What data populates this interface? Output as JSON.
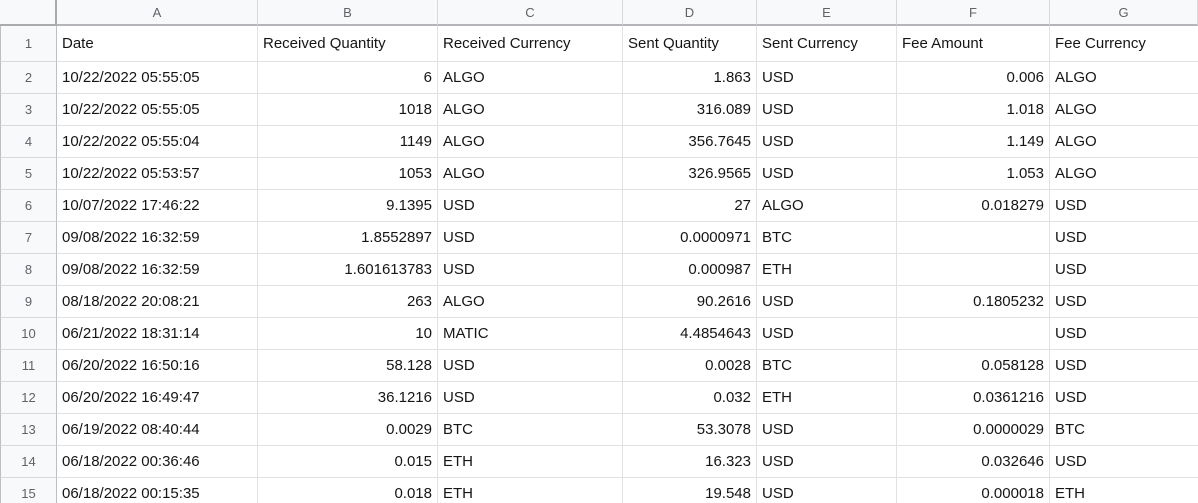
{
  "colors": {
    "grid_line": "#E1E2E3",
    "header_background": "#F8F9FA",
    "header_text": "#5F6368",
    "cell_text": "#151515",
    "corner_border": "#A9ABAE"
  },
  "sheet": {
    "column_letters": [
      "A",
      "B",
      "C",
      "D",
      "E",
      "F",
      "G"
    ],
    "header_row": {
      "row_number": "1",
      "cells": [
        "Date",
        "Received Quantity",
        "Received Currency",
        "Sent Quantity",
        "Sent Currency",
        "Fee Amount",
        "Fee Currency"
      ]
    },
    "data_rows": [
      {
        "row_number": "2",
        "cells": [
          "10/22/2022 05:55:05",
          "6",
          "ALGO",
          "1.863",
          "USD",
          "0.006",
          "ALGO"
        ]
      },
      {
        "row_number": "3",
        "cells": [
          "10/22/2022 05:55:05",
          "1018",
          "ALGO",
          "316.089",
          "USD",
          "1.018",
          "ALGO"
        ]
      },
      {
        "row_number": "4",
        "cells": [
          "10/22/2022 05:55:04",
          "1149",
          "ALGO",
          "356.7645",
          "USD",
          "1.149",
          "ALGO"
        ]
      },
      {
        "row_number": "5",
        "cells": [
          "10/22/2022 05:53:57",
          "1053",
          "ALGO",
          "326.9565",
          "USD",
          "1.053",
          "ALGO"
        ]
      },
      {
        "row_number": "6",
        "cells": [
          "10/07/2022 17:46:22",
          "9.1395",
          "USD",
          "27",
          "ALGO",
          "0.018279",
          "USD"
        ]
      },
      {
        "row_number": "7",
        "cells": [
          "09/08/2022 16:32:59",
          "1.8552897",
          "USD",
          "0.0000971",
          "BTC",
          "",
          "USD"
        ]
      },
      {
        "row_number": "8",
        "cells": [
          "09/08/2022 16:32:59",
          "1.601613783",
          "USD",
          "0.000987",
          "ETH",
          "",
          "USD"
        ]
      },
      {
        "row_number": "9",
        "cells": [
          "08/18/2022 20:08:21",
          "263",
          "ALGO",
          "90.2616",
          "USD",
          "0.1805232",
          "USD"
        ]
      },
      {
        "row_number": "10",
        "cells": [
          "06/21/2022 18:31:14",
          "10",
          "MATIC",
          "4.4854643",
          "USD",
          "",
          "USD"
        ]
      },
      {
        "row_number": "11",
        "cells": [
          "06/20/2022 16:50:16",
          "58.128",
          "USD",
          "0.0028",
          "BTC",
          "0.058128",
          "USD"
        ]
      },
      {
        "row_number": "12",
        "cells": [
          "06/20/2022 16:49:47",
          "36.1216",
          "USD",
          "0.032",
          "ETH",
          "0.0361216",
          "USD"
        ]
      },
      {
        "row_number": "13",
        "cells": [
          "06/19/2022 08:40:44",
          "0.0029",
          "BTC",
          "53.3078",
          "USD",
          "0.0000029",
          "BTC"
        ]
      },
      {
        "row_number": "14",
        "cells": [
          "06/18/2022 00:36:46",
          "0.015",
          "ETH",
          "16.323",
          "USD",
          "0.032646",
          "USD"
        ]
      },
      {
        "row_number": "15",
        "cells": [
          "06/18/2022 00:15:35",
          "0.018",
          "ETH",
          "19.548",
          "USD",
          "0.000018",
          "ETH"
        ]
      }
    ]
  }
}
